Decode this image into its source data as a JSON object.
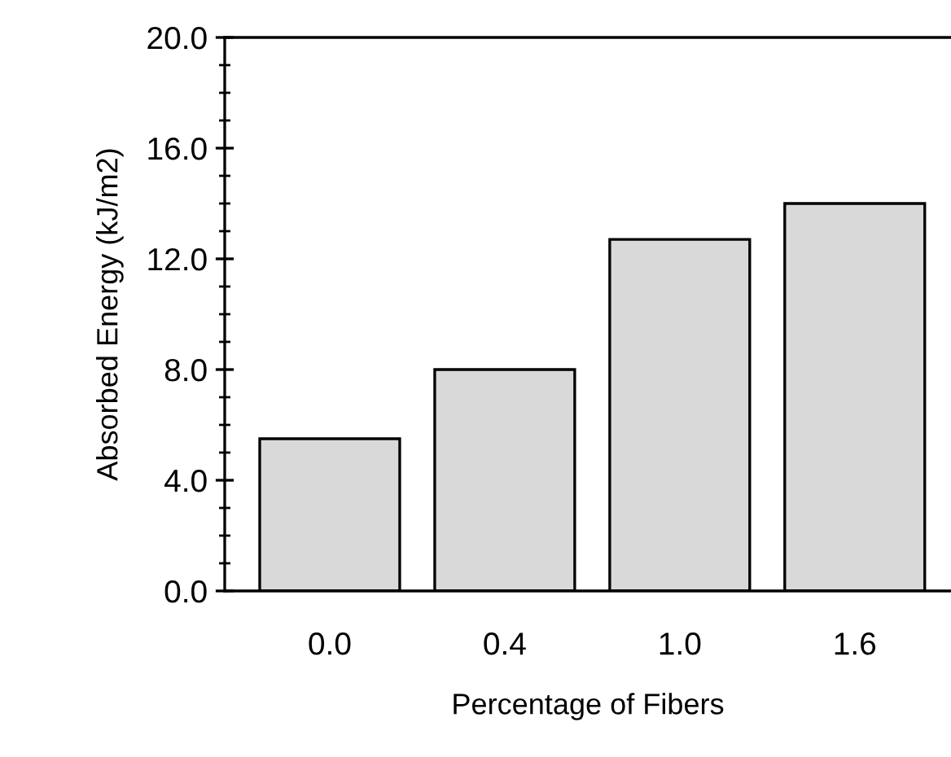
{
  "chart_data": {
    "type": "bar",
    "xlabel": "Percentage of Fibers",
    "ylabel": "Absorbed Energy (kJ/m2)",
    "categories": [
      "0.0",
      "0.4",
      "1.0",
      "1.6"
    ],
    "values": [
      5.5,
      8.0,
      12.7,
      14.0
    ],
    "color": "#d9d9d9",
    "ylim": [
      0,
      20
    ],
    "yticks": [
      {
        "value": 0,
        "label": "0.0"
      },
      {
        "value": 1,
        "label": null
      },
      {
        "value": 2,
        "label": null
      },
      {
        "value": 3,
        "label": null
      },
      {
        "value": 4,
        "label": "4.0"
      },
      {
        "value": 5,
        "label": null
      },
      {
        "value": 6,
        "label": null
      },
      {
        "value": 7,
        "label": null
      },
      {
        "value": 8,
        "label": "8.0"
      },
      {
        "value": 9,
        "label": null
      },
      {
        "value": 10,
        "label": null
      },
      {
        "value": 11,
        "label": null
      },
      {
        "value": 12,
        "label": "12.0"
      },
      {
        "value": 13,
        "label": null
      },
      {
        "value": 14,
        "label": null
      },
      {
        "value": 15,
        "label": null
      },
      {
        "value": 16,
        "label": "16.0"
      },
      {
        "value": 17,
        "label": null
      },
      {
        "value": 18,
        "label": null
      },
      {
        "value": 19,
        "label": null
      },
      {
        "value": 20,
        "label": "20.0"
      }
    ],
    "grid": false
  }
}
